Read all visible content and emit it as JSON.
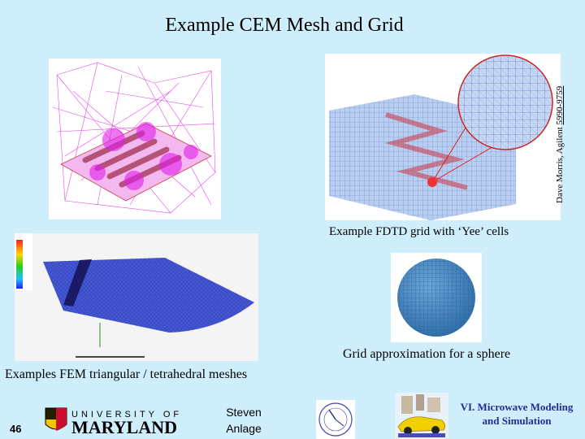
{
  "title": "Example CEM Mesh and Grid",
  "credit": {
    "prefix": "Dave Morris, Agilent ",
    "phone": "5990-9759"
  },
  "fdtd_caption": "Example FDTD grid with ‘Yee’ cells",
  "sphere_caption": "Grid approximation for a sphere",
  "fem_caption": "Examples FEM triangular / tetrahedral meshes",
  "page_number": "46",
  "logo_text": {
    "line1": "UNIVERSITY OF",
    "line2": "MARYLAND"
  },
  "author": {
    "first": "Steven",
    "last": "Anlage"
  },
  "footer_right": {
    "line1": "VI. Microwave Modeling",
    "line2": "and Simulation"
  },
  "colors": {
    "background": "#cfeefc",
    "mesh_magenta": "#e11de8",
    "grid_blue": "#7a9fd6",
    "fem_blue": "#2233aa",
    "footer_blue": "#1f2f95",
    "maryland_red": "#c8102e",
    "maryland_gold": "#f2c500"
  }
}
